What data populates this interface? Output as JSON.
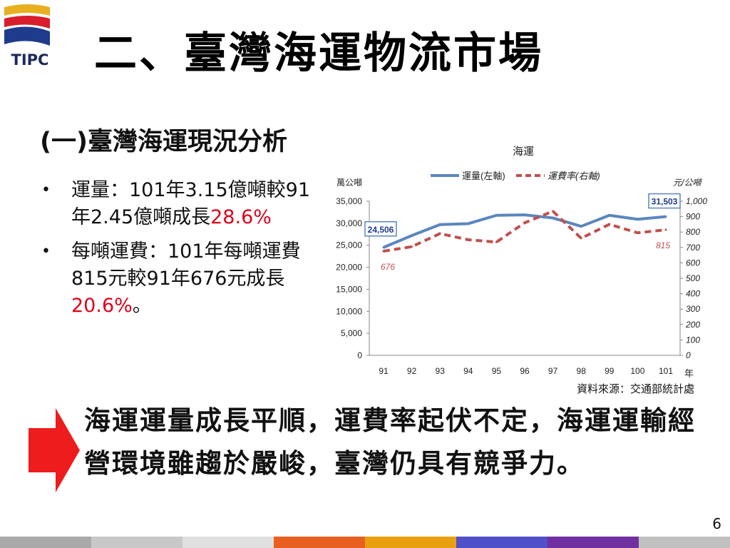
{
  "logo": {
    "text": "TIPC"
  },
  "title": "二、臺灣海運物流市場",
  "subtitle": "(一)臺灣海運現況分析",
  "bullets": [
    {
      "text": "運量：101年3.15億噸較91年2.45億噸成長",
      "highlight": "28.6%",
      "suffix": ""
    },
    {
      "text": "每噸運費：101年每噸運費815元較91年676元成長",
      "highlight": "20.6%",
      "suffix": "。"
    }
  ],
  "chart_data": {
    "type": "line",
    "title": "海運",
    "x": [
      "91",
      "92",
      "93",
      "94",
      "95",
      "96",
      "97",
      "98",
      "99",
      "100",
      "101"
    ],
    "xlabel_unit": "年",
    "ylabel_left": "萬公噸",
    "ylabel_right": "元/公噸",
    "ylim_left": [
      0,
      35000
    ],
    "ylim_right": [
      0,
      1000
    ],
    "yticks_left": [
      "0",
      "5,000",
      "10,000",
      "15,000",
      "20,000",
      "25,000",
      "30,000",
      "35,000"
    ],
    "yticks_right": [
      "0",
      "100",
      "200",
      "300",
      "400",
      "500",
      "600",
      "700",
      "800",
      "900",
      "1,000"
    ],
    "legend_position": "top",
    "series": [
      {
        "name": "運量(左軸)",
        "axis": "left",
        "color": "#5b86c0",
        "style": "solid",
        "values": [
          24506,
          27200,
          29700,
          29900,
          31800,
          31900,
          31200,
          29300,
          31800,
          30900,
          31503
        ]
      },
      {
        "name": "運費率(右軸)",
        "axis": "right",
        "color": "#c0504d",
        "style": "dashed",
        "values": [
          676,
          705,
          790,
          750,
          735,
          860,
          935,
          760,
          850,
          795,
          815
        ]
      }
    ],
    "annotations": [
      {
        "text": "24,506",
        "boxed": true
      },
      {
        "text": "31,503",
        "boxed": true
      },
      {
        "text": "676",
        "boxed": false
      },
      {
        "text": "815",
        "boxed": false
      }
    ],
    "source": "資料來源：交通部統計處"
  },
  "conclusion": "海運運量成長平順，運費率起伏不定，海運運輸經營環境雖趨於嚴峻，臺灣仍具有競爭力。",
  "page_number": "6",
  "colors": {
    "footer": [
      "#a9a9a9",
      "#c8c8c8",
      "#e0e0e0",
      "#e86020",
      "#e8a010",
      "#5050c8",
      "#7030a0",
      "#c0c0c0"
    ],
    "accent_red": "#e0001a"
  }
}
